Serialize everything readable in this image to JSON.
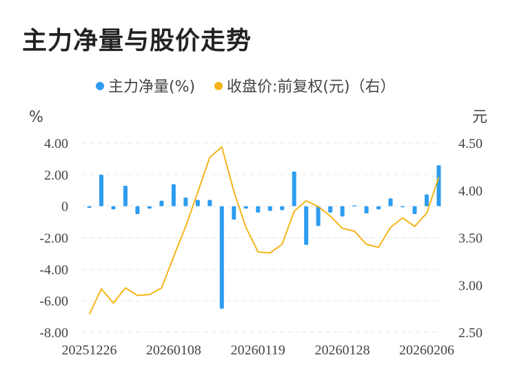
{
  "title": "主力净量与股价走势",
  "chart_data": {
    "type": "bar+line",
    "legend": [
      {
        "label": "主力净量(%)",
        "color": "#2d9cf0"
      },
      {
        "label": "收盘价:前复权(元)（右）",
        "color": "#f5b418"
      }
    ],
    "y_left_unit": "%",
    "y_right_unit": "元",
    "y_left_ticks": [
      "4.00",
      "2.00",
      "0",
      "-2.00",
      "-4.00",
      "-6.00",
      "-8.00"
    ],
    "y_right_ticks": [
      "4.50",
      "4.00",
      "3.50",
      "3.00",
      "2.50"
    ],
    "y_left_range": [
      -8,
      4
    ],
    "y_right_range": [
      2.5,
      4.5
    ],
    "x_tick_labels": [
      "20251226",
      "20260108",
      "20260119",
      "20260128",
      "20260206"
    ],
    "x_tick_indices": [
      0,
      7,
      14,
      21,
      28
    ],
    "grid": true,
    "series": [
      {
        "name": "主力净量(%)",
        "kind": "bar",
        "values": [
          -0.1,
          2.0,
          -0.2,
          1.3,
          -0.5,
          -0.15,
          0.35,
          1.4,
          0.55,
          0.4,
          0.4,
          -6.5,
          -0.85,
          -0.15,
          -0.4,
          -0.3,
          -0.25,
          2.2,
          -2.45,
          -1.25,
          -0.4,
          -0.65,
          0.05,
          -0.45,
          -0.2,
          0.5,
          -0.05,
          -0.5,
          0.75,
          2.6
        ]
      },
      {
        "name": "收盘价:前复权(元)（右）",
        "kind": "line",
        "values": [
          2.69,
          2.96,
          2.81,
          2.97,
          2.89,
          2.9,
          2.97,
          3.3,
          3.62,
          3.98,
          4.35,
          4.46,
          3.99,
          3.61,
          3.35,
          3.34,
          3.43,
          3.78,
          3.89,
          3.83,
          3.73,
          3.6,
          3.57,
          3.43,
          3.4,
          3.61,
          3.71,
          3.62,
          3.76,
          4.14
        ]
      }
    ]
  }
}
